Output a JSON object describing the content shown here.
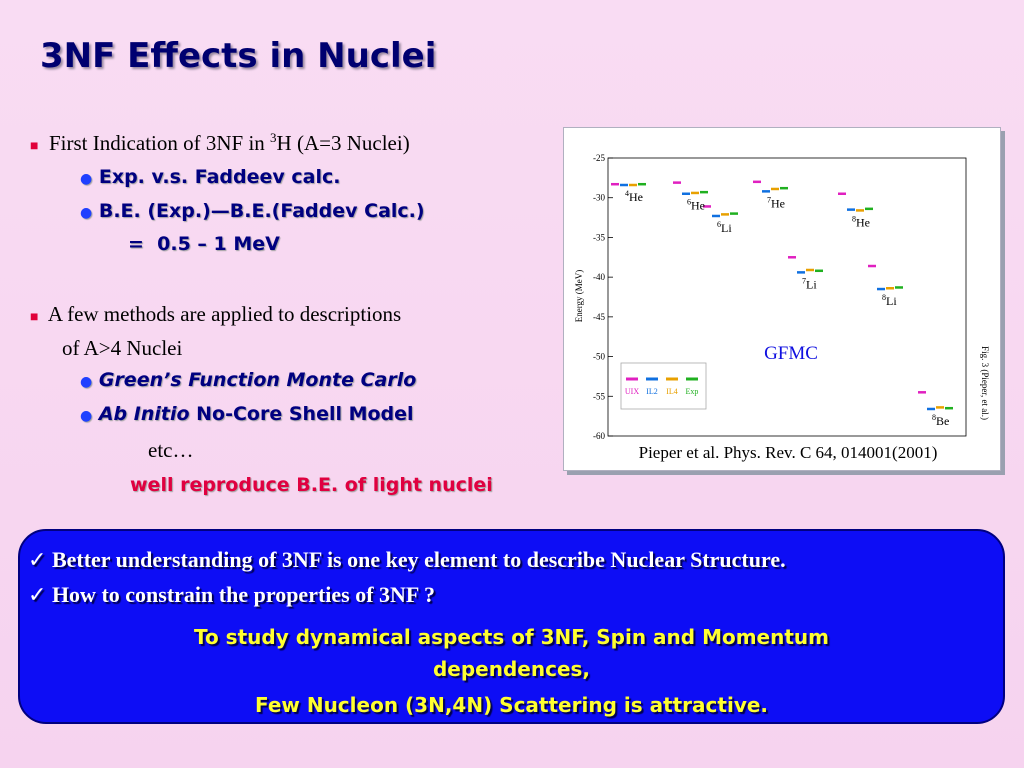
{
  "title": "3NF Effects in Nuclei",
  "bullet1": {
    "text": "First Indication of 3NF in ",
    "sup": "3",
    "after": "H (A=3 Nuclei)",
    "items": [
      "Exp. v.s. Faddeev calc.",
      "B.E. (Exp.)—B.E.(Faddev Calc.)"
    ],
    "result": "=  0.5 – 1 MeV"
  },
  "bullet2": {
    "line1": "A few methods are applied to descriptions",
    "line2": "of A>4 Nuclei",
    "item1": "Green’s Function Monte Carlo",
    "item2_italic": "Ab Initio",
    "item2_rest": " No-Core Shell Model",
    "etc": "etc…",
    "note": "well reproduce B.E. of light nuclei"
  },
  "box": {
    "checks": [
      "Better understanding of 3NF is one key element to describe Nuclear Structure.",
      "How to constrain the properties of 3NF ?"
    ],
    "conclusion": [
      "To study dynamical aspects of 3NF, Spin and Momentum",
      "dependences,",
      "Few Nucleon (3N,4N) Scattering is attractive."
    ]
  },
  "figure": {
    "label": "GFMC",
    "side_note": "Fig. 3   (Pieper, et al.)",
    "citation": "Pieper et al. Phys. Rev. C 64, 014001(2001)"
  },
  "chart_data": {
    "type": "levels",
    "ylabel": "Energy (MeV)",
    "categories": [
      {
        "mass": "4",
        "symbol": "He"
      },
      {
        "mass": "6",
        "symbol": "He"
      },
      {
        "mass": "6",
        "symbol": "Li"
      },
      {
        "mass": "7",
        "symbol": "He"
      },
      {
        "mass": "7",
        "symbol": "Li"
      },
      {
        "mass": "8",
        "symbol": "He"
      },
      {
        "mass": "8",
        "symbol": "Li"
      },
      {
        "mass": "8",
        "symbol": "Be"
      }
    ],
    "series": [
      {
        "name": "UIX",
        "color": "#e020c0",
        "values": [
          -28.3,
          -28.1,
          -31.1,
          -28.0,
          -37.5,
          -29.5,
          -38.6,
          -54.5
        ]
      },
      {
        "name": "IL2",
        "color": "#1070e0",
        "values": [
          -28.4,
          -29.5,
          -32.3,
          -29.2,
          -39.4,
          -31.5,
          -41.5,
          -56.6
        ]
      },
      {
        "name": "IL4",
        "color": "#e8a000",
        "values": [
          -28.4,
          -29.4,
          -32.1,
          -28.9,
          -39.1,
          -31.6,
          -41.4,
          -56.4
        ]
      },
      {
        "name": "Exp",
        "color": "#20b020",
        "values": [
          -28.3,
          -29.3,
          -32.0,
          -28.8,
          -39.2,
          -31.4,
          -41.3,
          -56.5
        ]
      }
    ],
    "ylim": [
      -60,
      -25
    ],
    "yticks": [
      -25,
      -30,
      -35,
      -40,
      -45,
      -50,
      -55,
      -60
    ]
  }
}
